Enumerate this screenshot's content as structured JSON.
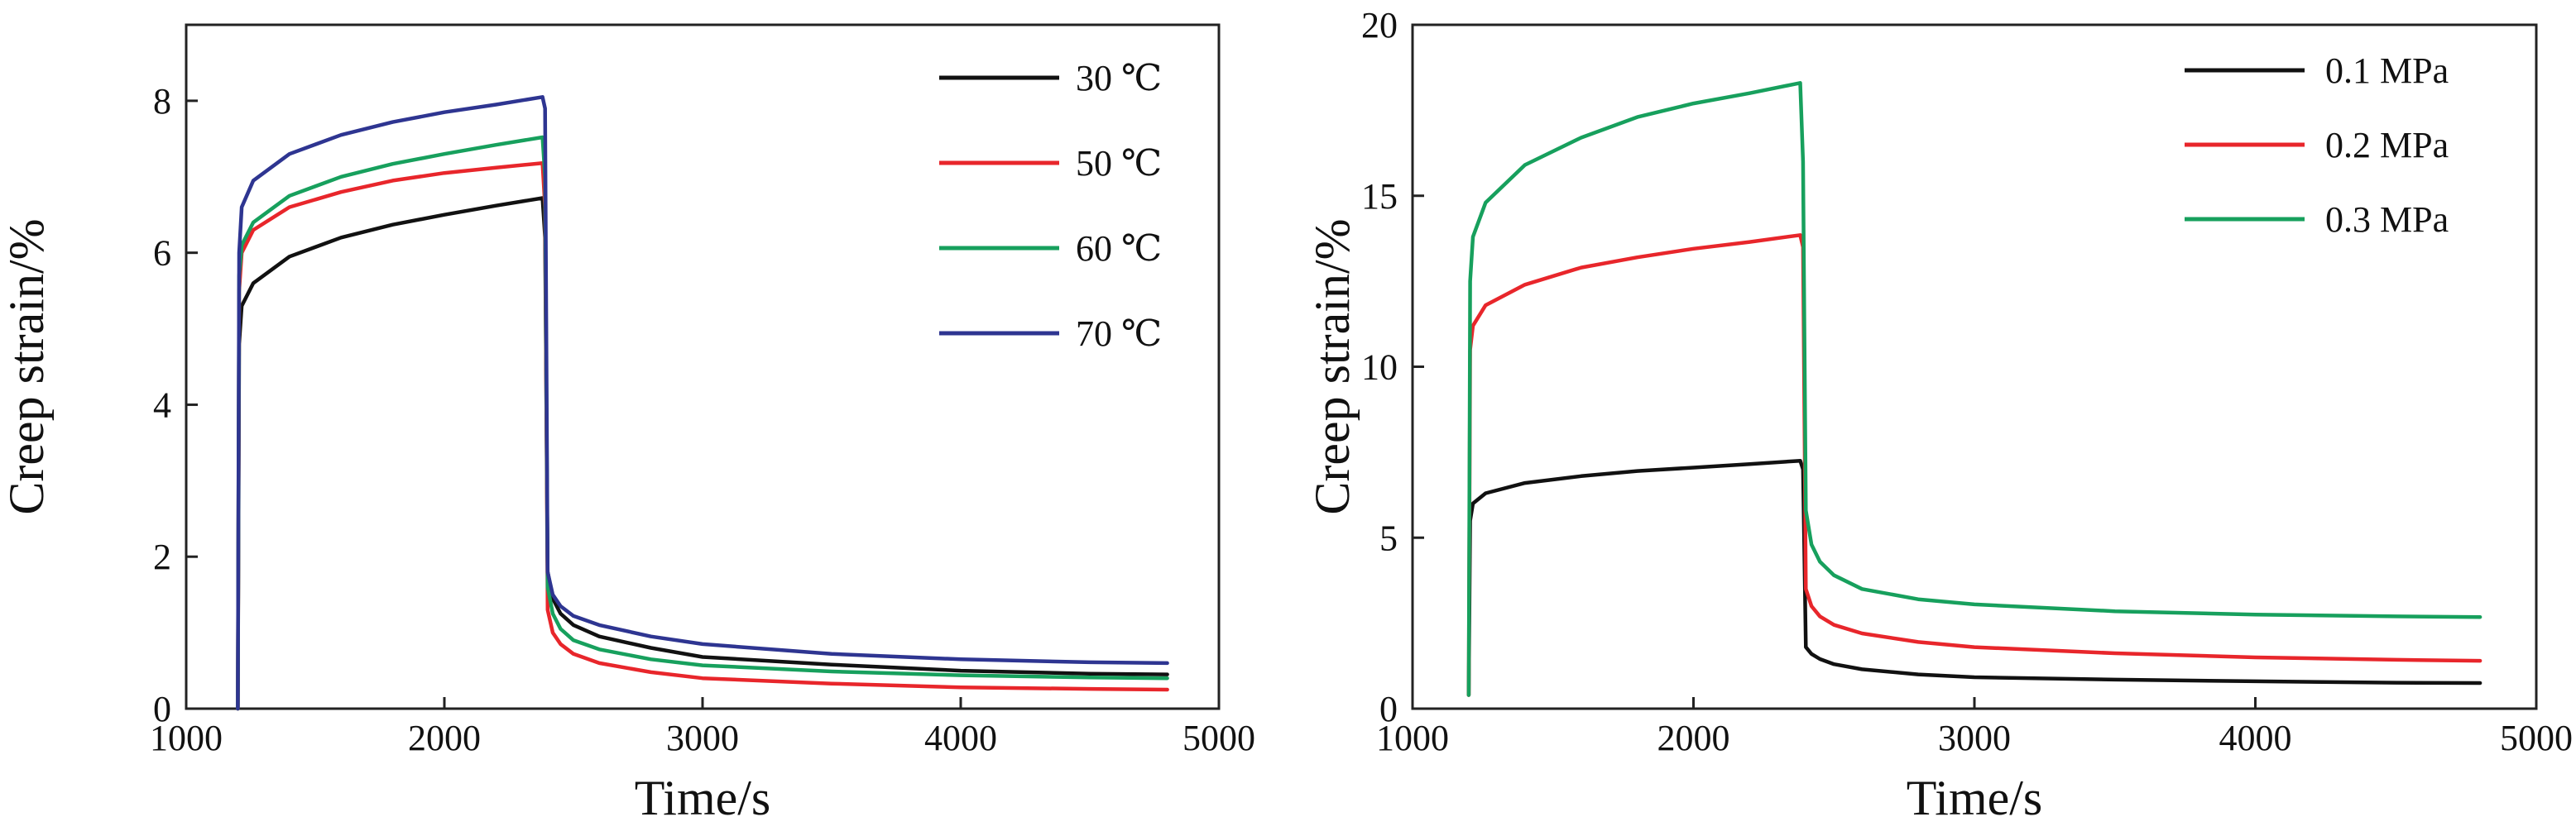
{
  "chart_data": [
    {
      "type": "line",
      "title": "",
      "xlabel": "Time/s",
      "ylabel": "Creep strain/%",
      "xlim": [
        1000,
        5000
      ],
      "ylim": [
        0,
        9
      ],
      "xticks": [
        1000,
        2000,
        3000,
        4000,
        5000
      ],
      "yticks": [
        0,
        2,
        4,
        6,
        8
      ],
      "legend_position": "top-right",
      "series": [
        {
          "name": "30 ℃",
          "color": "#111111",
          "x": [
            1200,
            1205,
            1215,
            1260,
            1400,
            1600,
            1800,
            2000,
            2200,
            2380,
            2390,
            2400,
            2420,
            2450,
            2500,
            2600,
            2800,
            3000,
            3500,
            4000,
            4500,
            4800
          ],
          "y": [
            0,
            4.8,
            5.3,
            5.6,
            5.95,
            6.2,
            6.37,
            6.5,
            6.62,
            6.72,
            6.2,
            1.8,
            1.45,
            1.25,
            1.1,
            0.95,
            0.8,
            0.68,
            0.58,
            0.5,
            0.46,
            0.45
          ]
        },
        {
          "name": "50 ℃",
          "color": "#e8262b",
          "x": [
            1200,
            1205,
            1215,
            1260,
            1400,
            1600,
            1800,
            2000,
            2200,
            2380,
            2390,
            2400,
            2420,
            2450,
            2500,
            2600,
            2800,
            3000,
            3500,
            4000,
            4500,
            4800
          ],
          "y": [
            0,
            5.5,
            6.0,
            6.3,
            6.6,
            6.8,
            6.95,
            7.05,
            7.12,
            7.18,
            6.6,
            1.3,
            1.0,
            0.85,
            0.72,
            0.6,
            0.48,
            0.4,
            0.33,
            0.28,
            0.26,
            0.25
          ]
        },
        {
          "name": "60 ℃",
          "color": "#17a05d",
          "x": [
            1200,
            1205,
            1215,
            1260,
            1400,
            1600,
            1800,
            2000,
            2200,
            2380,
            2390,
            2400,
            2420,
            2450,
            2500,
            2600,
            2800,
            3000,
            3500,
            4000,
            4500,
            4800
          ],
          "y": [
            0,
            5.7,
            6.1,
            6.4,
            6.75,
            7.0,
            7.17,
            7.3,
            7.42,
            7.52,
            7.0,
            1.6,
            1.25,
            1.05,
            0.9,
            0.78,
            0.65,
            0.57,
            0.49,
            0.44,
            0.41,
            0.4
          ]
        },
        {
          "name": "70 ℃",
          "color": "#2e3591",
          "x": [
            1200,
            1205,
            1215,
            1260,
            1400,
            1600,
            1800,
            2000,
            2200,
            2380,
            2390,
            2400,
            2420,
            2450,
            2500,
            2600,
            2800,
            3000,
            3500,
            4000,
            4500,
            4800
          ],
          "y": [
            0,
            6.0,
            6.6,
            6.95,
            7.3,
            7.55,
            7.72,
            7.85,
            7.95,
            8.05,
            7.9,
            1.8,
            1.5,
            1.35,
            1.22,
            1.1,
            0.95,
            0.85,
            0.72,
            0.65,
            0.61,
            0.6
          ]
        }
      ]
    },
    {
      "type": "line",
      "title": "",
      "xlabel": "Time/s",
      "ylabel": "Creep strain/%",
      "xlim": [
        1000,
        5000
      ],
      "ylim": [
        0,
        20
      ],
      "xticks": [
        1000,
        2000,
        3000,
        4000,
        5000
      ],
      "yticks": [
        0,
        5,
        10,
        15,
        20
      ],
      "legend_position": "top-right",
      "series": [
        {
          "name": "0.1 MPa",
          "color": "#111111",
          "x": [
            1200,
            1205,
            1215,
            1260,
            1400,
            1600,
            1800,
            2000,
            2200,
            2380,
            2390,
            2400,
            2420,
            2450,
            2500,
            2600,
            2800,
            3000,
            3500,
            4000,
            4500,
            4800
          ],
          "y": [
            0.4,
            5.5,
            6.0,
            6.3,
            6.6,
            6.8,
            6.95,
            7.05,
            7.15,
            7.25,
            7.0,
            1.8,
            1.6,
            1.45,
            1.3,
            1.15,
            1.0,
            0.92,
            0.85,
            0.8,
            0.76,
            0.75
          ]
        },
        {
          "name": "0.2 MPa",
          "color": "#e8262b",
          "x": [
            1200,
            1205,
            1215,
            1260,
            1400,
            1600,
            1800,
            2000,
            2200,
            2380,
            2390,
            2400,
            2420,
            2450,
            2500,
            2600,
            2800,
            3000,
            3500,
            4000,
            4500,
            4800
          ],
          "y": [
            0.4,
            10.5,
            11.2,
            11.8,
            12.4,
            12.9,
            13.2,
            13.45,
            13.65,
            13.85,
            13.5,
            3.5,
            3.0,
            2.7,
            2.45,
            2.2,
            1.95,
            1.8,
            1.62,
            1.5,
            1.43,
            1.4
          ]
        },
        {
          "name": "0.3 MPa",
          "color": "#17a05d",
          "x": [
            1200,
            1205,
            1215,
            1260,
            1400,
            1600,
            1800,
            2000,
            2200,
            2380,
            2390,
            2400,
            2420,
            2450,
            2500,
            2600,
            2800,
            3000,
            3500,
            4000,
            4500,
            4800
          ],
          "y": [
            0.4,
            12.5,
            13.8,
            14.8,
            15.9,
            16.7,
            17.3,
            17.7,
            18.0,
            18.3,
            16.0,
            5.8,
            4.8,
            4.3,
            3.9,
            3.5,
            3.2,
            3.05,
            2.85,
            2.75,
            2.7,
            2.68
          ]
        }
      ]
    }
  ]
}
